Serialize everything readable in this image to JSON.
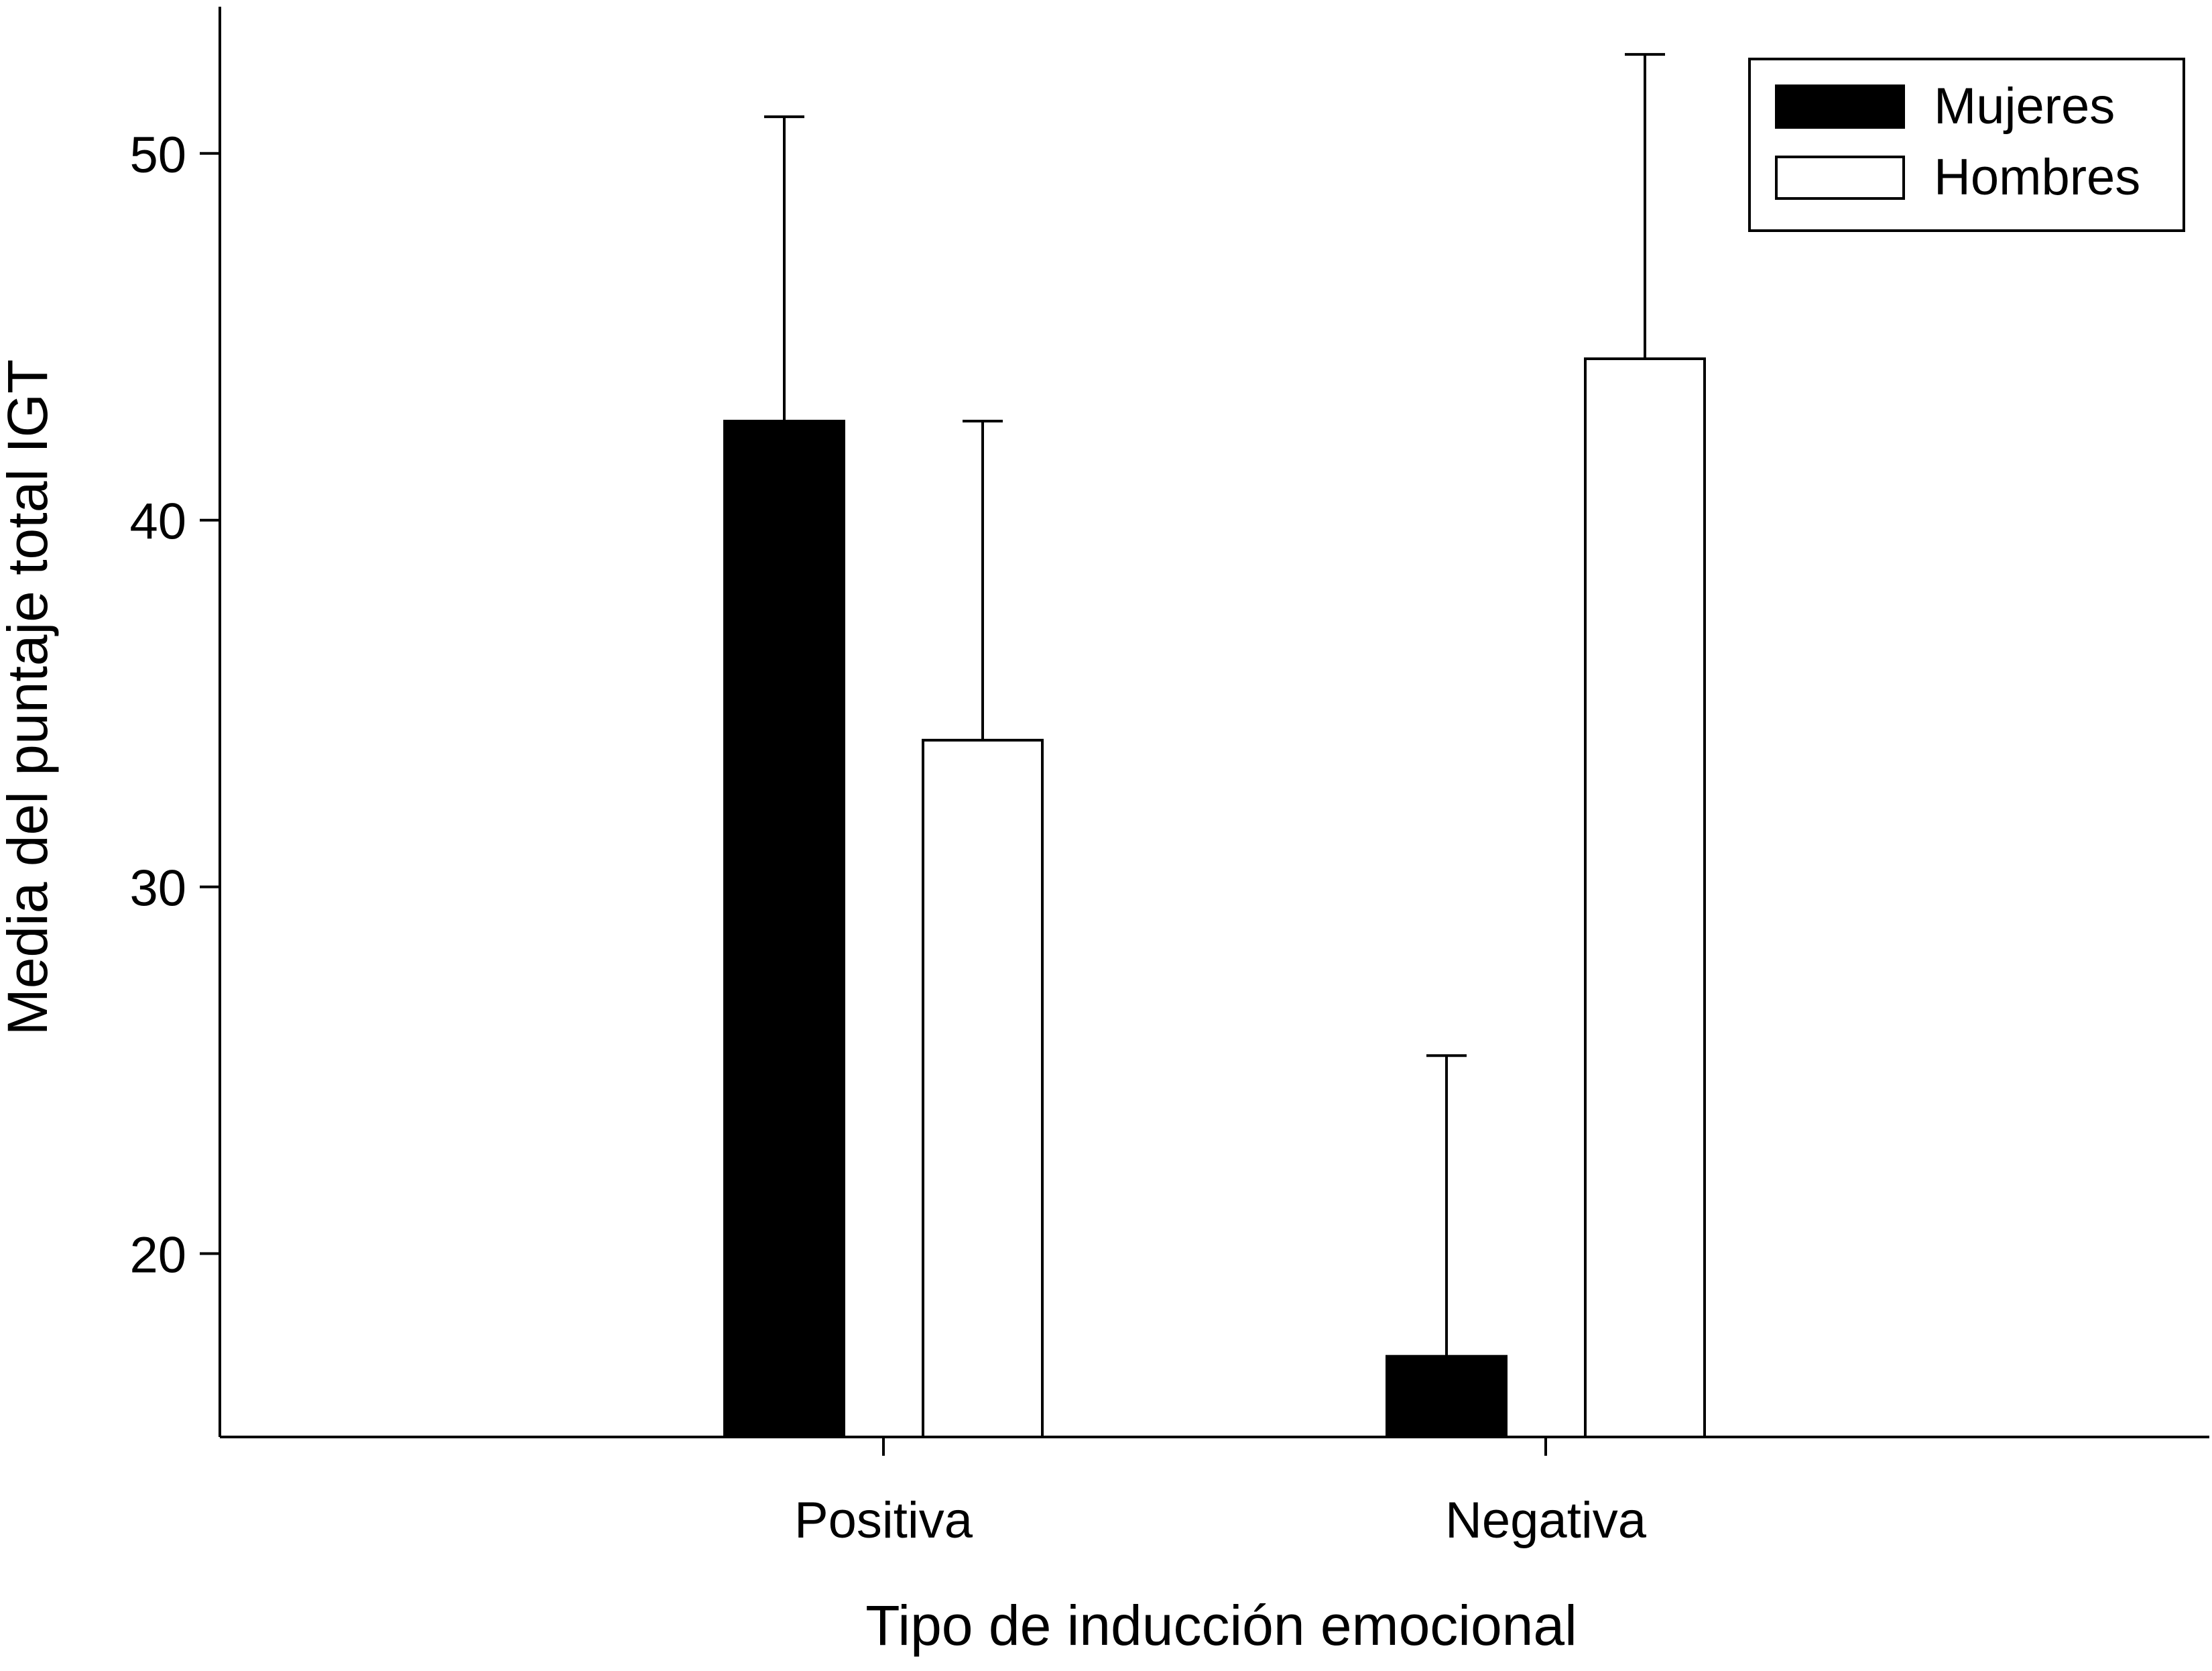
{
  "chart_data": {
    "type": "bar",
    "title": "",
    "xlabel": "Tipo de inducción emocional",
    "ylabel": "Media del puntaje total IGT",
    "categories": [
      "Positiva",
      "Negativa"
    ],
    "series": [
      {
        "name": "Mujeres",
        "color": "#000000",
        "values": [
          42.7,
          17.2
        ],
        "error_upper": [
          51.0,
          25.4
        ]
      },
      {
        "name": "Hombres",
        "color": "#ffffff",
        "values": [
          34.0,
          44.4
        ],
        "error_upper": [
          42.7,
          52.7
        ]
      }
    ],
    "ylim": [
      15,
      54
    ],
    "yticks": [
      20,
      30,
      40,
      50
    ],
    "grid": false,
    "legend": "top-right"
  }
}
